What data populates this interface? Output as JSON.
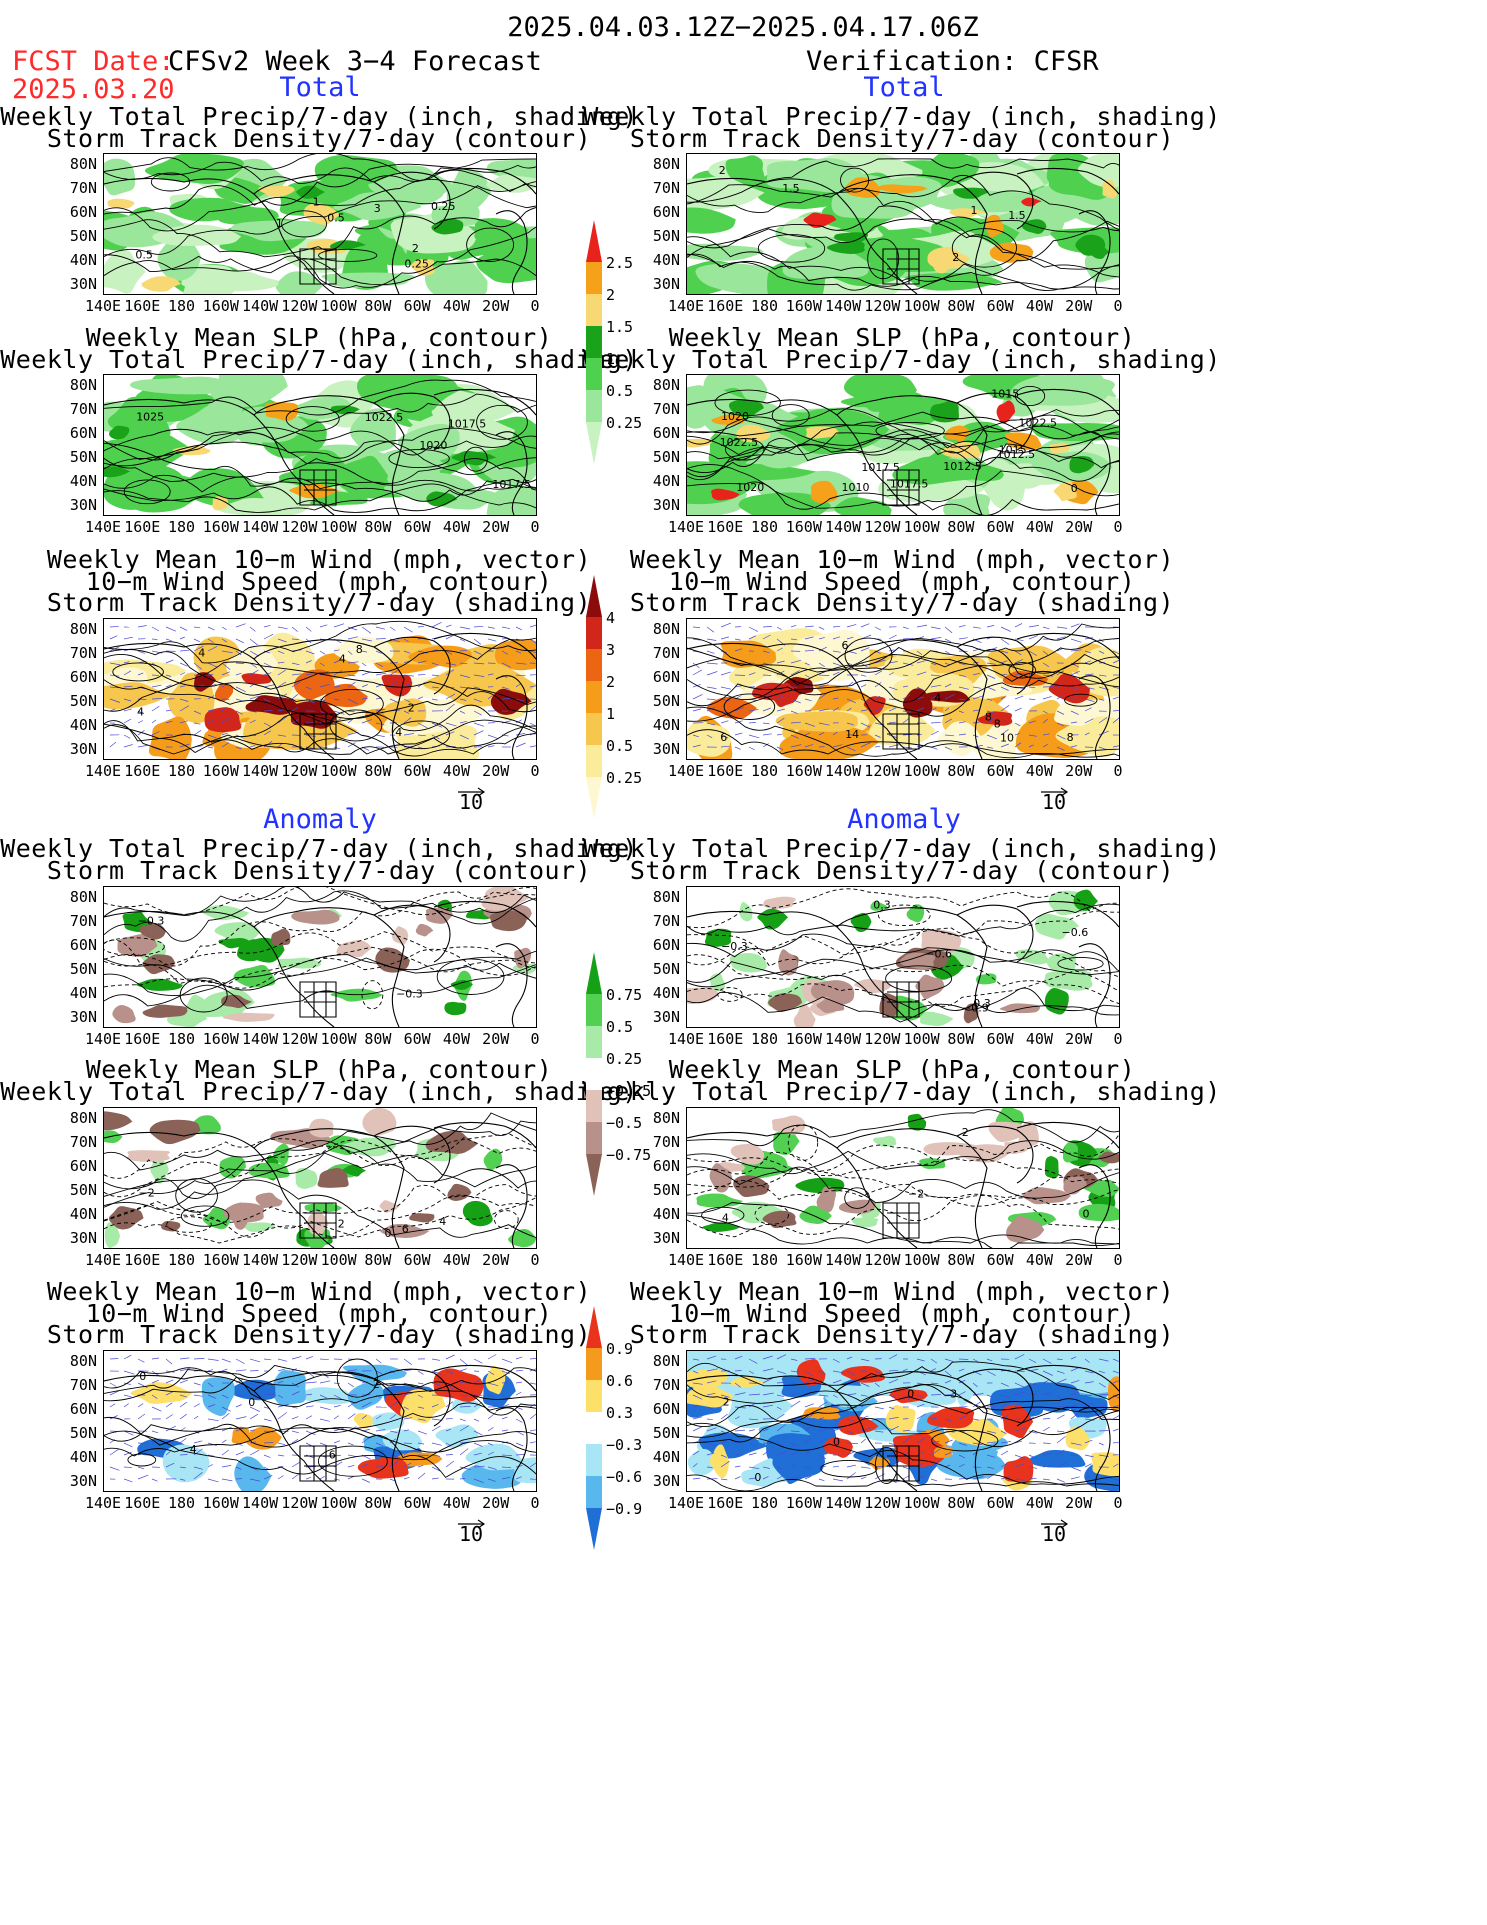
{
  "header": {
    "date_range": "2025.04.03.12Z−2025.04.17.06Z",
    "fcst_label": "FCST Date:",
    "fcst_date": "2025.03.20",
    "left_title": "CFSv2 Week 3−4 Forecast",
    "right_title": "Verification: CFSR"
  },
  "sections": {
    "total": "Total",
    "anomaly": "Anomaly"
  },
  "panel_titles": {
    "precip_storm": [
      "Weekly Total Precip/7-day (inch, shading)",
      "Storm Track Density/7-day (contour)"
    ],
    "slp_precip": [
      "Weekly Mean SLP (hPa, contour)",
      "Weekly Total Precip/7-day (inch, shading)"
    ],
    "wind_storm": [
      "Weekly Mean 10−m Wind (mph, vector)",
      "10−m Wind Speed (mph, contour)",
      "Storm Track Density/7-day (shading)"
    ]
  },
  "axes": {
    "lat_labels": [
      "80N",
      "70N",
      "60N",
      "50N",
      "40N",
      "30N"
    ],
    "lon_labels": [
      "140E",
      "160E",
      "180",
      "160W",
      "140W",
      "120W",
      "100W",
      "80W",
      "60W",
      "40W",
      "20W",
      "0"
    ]
  },
  "vector_ref": "10",
  "colorbars": {
    "precip_total": {
      "labels": [
        "2.5",
        "2",
        "1.5",
        "1",
        "0.5",
        "0.25"
      ],
      "colors": [
        "#e8231b",
        "#f5a21a",
        "#f8d873",
        "#1aa31a",
        "#4fd14f",
        "#9ae69a",
        "#c8f2c0"
      ]
    },
    "storm_total": {
      "labels": [
        "4",
        "3",
        "2",
        "1",
        "0.5",
        "0.25"
      ],
      "colors": [
        "#8c0c0c",
        "#d12619",
        "#ec6513",
        "#f59c1a",
        "#f7c64c",
        "#faec9a",
        "#fdf8d2"
      ]
    },
    "precip_anom": {
      "labels": [
        "0.75",
        "0.5",
        "0.25",
        "−0.25",
        "−0.5",
        "−0.75"
      ],
      "colors": [
        "#16a016",
        "#52d052",
        "#a8eba8",
        "#ffffff",
        "#e0c2b8",
        "#b8918a",
        "#8a6258"
      ]
    },
    "storm_anom": {
      "labels": [
        "0.9",
        "0.6",
        "0.3",
        "−0.3",
        "−0.6",
        "−0.9"
      ],
      "colors": [
        "#e8341d",
        "#f59a1d",
        "#fde06a",
        "#ffffff",
        "#a8e6f5",
        "#58b8ee",
        "#1f6fd6"
      ]
    }
  },
  "contour_labels": {
    "l1": [
      "0.5",
      "0.25",
      "1",
      "0.5",
      "3",
      "2",
      "1",
      "0.25"
    ],
    "r1": [
      "2",
      "1.5",
      "1.5",
      "1",
      "2"
    ],
    "l2": [
      "1025",
      "1020",
      "1017.5",
      "1017.5",
      "1022.5"
    ],
    "r2": [
      "1022.5",
      "1012.5",
      "1015",
      "1020",
      "1012.5",
      "1017.5",
      "1020",
      "1015",
      "1010",
      "1017.5",
      "1022.5",
      "0"
    ],
    "l3": [
      "4",
      "2",
      "4",
      "4",
      "8",
      "4"
    ],
    "r3": [
      "6",
      "8",
      "14",
      "6",
      "4",
      "8",
      "10",
      "8"
    ],
    "l4": [
      "−0.3",
      "−0.3"
    ],
    "r4": [
      "−0.3",
      "0.3",
      "−0.6",
      "−0.9",
      "−0.6",
      "0.3"
    ],
    "l5": [
      "−2",
      "0",
      "6",
      "4",
      "2"
    ],
    "r5": [
      "4",
      "2",
      "−2",
      "0"
    ],
    "l6": [
      "0",
      "2",
      "0",
      "4",
      "6"
    ],
    "r6": [
      "2",
      "3",
      "0",
      "0",
      "0"
    ]
  }
}
